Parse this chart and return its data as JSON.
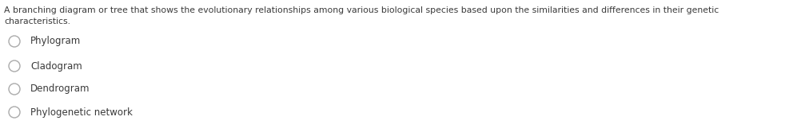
{
  "question_line1": "A branching diagram or tree that shows the evolutionary relationships among various biological species based upon the similarities and differences in their genetic",
  "question_line2": "characteristics.",
  "options": [
    "Phylogram",
    "Cladogram",
    "Dendrogram",
    "Phylogenetic network"
  ],
  "background_color": "#ffffff",
  "question_text_color": "#3a3a3a",
  "option_text_color": "#3a3a3a",
  "question_fontsize": 7.8,
  "option_fontsize": 8.5,
  "circle_edge_color": "#aaaaaa",
  "circle_linewidth": 1.0
}
